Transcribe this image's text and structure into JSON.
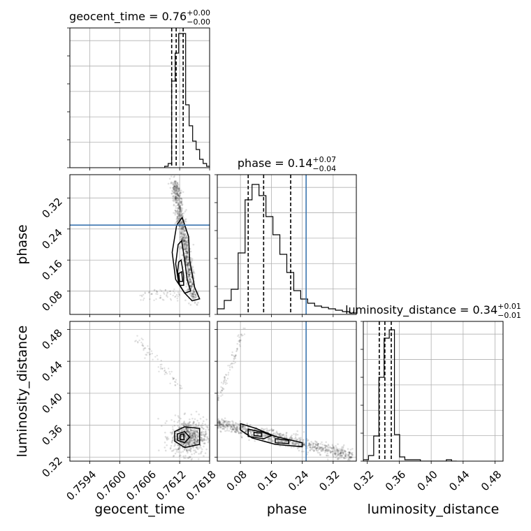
{
  "chart_data": {
    "type": "corner",
    "parameters": [
      {
        "name": "geocent_time",
        "range": [
          0.759,
          0.7618
        ],
        "ticks": [
          0.7594,
          0.76,
          0.7606,
          0.7612,
          0.7618
        ],
        "tick_labels": [
          "0.7594",
          "0.7600",
          "0.7606",
          "0.7612",
          "0.7618"
        ]
      },
      {
        "name": "phase",
        "range": [
          0.02,
          0.38
        ],
        "ticks": [
          0.08,
          0.16,
          0.24,
          0.32
        ],
        "tick_labels": [
          "0.08",
          "0.16",
          "0.24",
          "0.32"
        ]
      },
      {
        "name": "luminosity_distance",
        "range": [
          0.315,
          0.49
        ],
        "ticks": [
          0.32,
          0.36,
          0.4,
          0.44,
          0.48
        ],
        "tick_labels": [
          "0.32",
          "0.36",
          "0.40",
          "0.44",
          "0.48"
        ]
      }
    ],
    "titles": [
      {
        "text": "geocent_time = 0.76",
        "sup": "+0.00",
        "sub": "−0.00"
      },
      {
        "text": "phase = 0.14",
        "sup": "+0.07",
        "sub": "−0.04"
      },
      {
        "text": "luminosity_distance = 0.34",
        "sup": "+0.01",
        "sub": "−0.01"
      }
    ],
    "histograms": [
      {
        "edges": [
          0.7609,
          0.76097,
          0.76104,
          0.76111,
          0.76118,
          0.76125,
          0.76132,
          0.76139,
          0.76146,
          0.76153,
          0.7616,
          0.76167,
          0.76174,
          0.76181
        ],
        "counts": [
          0.01,
          0.03,
          0.62,
          0.82,
          0.96,
          0.96,
          0.45,
          0.3,
          0.19,
          0.13,
          0.06,
          0.03,
          0.01
        ],
        "quantiles": [
          0.76104,
          0.76113,
          0.76127
        ]
      },
      {
        "edges": [
          0.02,
          0.038,
          0.056,
          0.074,
          0.092,
          0.11,
          0.128,
          0.146,
          0.164,
          0.182,
          0.2,
          0.218,
          0.236,
          0.254,
          0.272,
          0.29,
          0.308,
          0.326,
          0.344,
          0.362,
          0.38
        ],
        "counts": [
          0.04,
          0.1,
          0.18,
          0.44,
          0.82,
          0.93,
          0.85,
          0.7,
          0.57,
          0.43,
          0.3,
          0.17,
          0.11,
          0.08,
          0.06,
          0.05,
          0.04,
          0.03,
          0.02,
          0.01
        ],
        "quantiles": [
          0.1,
          0.14,
          0.21
        ]
      },
      {
        "edges": [
          0.315,
          0.3215,
          0.328,
          0.3345,
          0.341,
          0.3475,
          0.354,
          0.3605,
          0.367,
          0.3735,
          0.38,
          0.3865,
          0.393,
          0.3995,
          0.406,
          0.4125,
          0.419,
          0.4255,
          0.432
        ],
        "counts": [
          0.01,
          0.04,
          0.18,
          0.6,
          0.88,
          0.94,
          0.19,
          0.03,
          0.01,
          0.01,
          0.01,
          0.0,
          0.0,
          0.0,
          0.0,
          0.0,
          0.01,
          0.0
        ],
        "quantiles": [
          0.335,
          0.342,
          0.35
        ]
      }
    ],
    "truths": [
      null,
      0.25,
      null
    ],
    "grid": true,
    "contour_style": "grey filled levels with black contour lines"
  }
}
